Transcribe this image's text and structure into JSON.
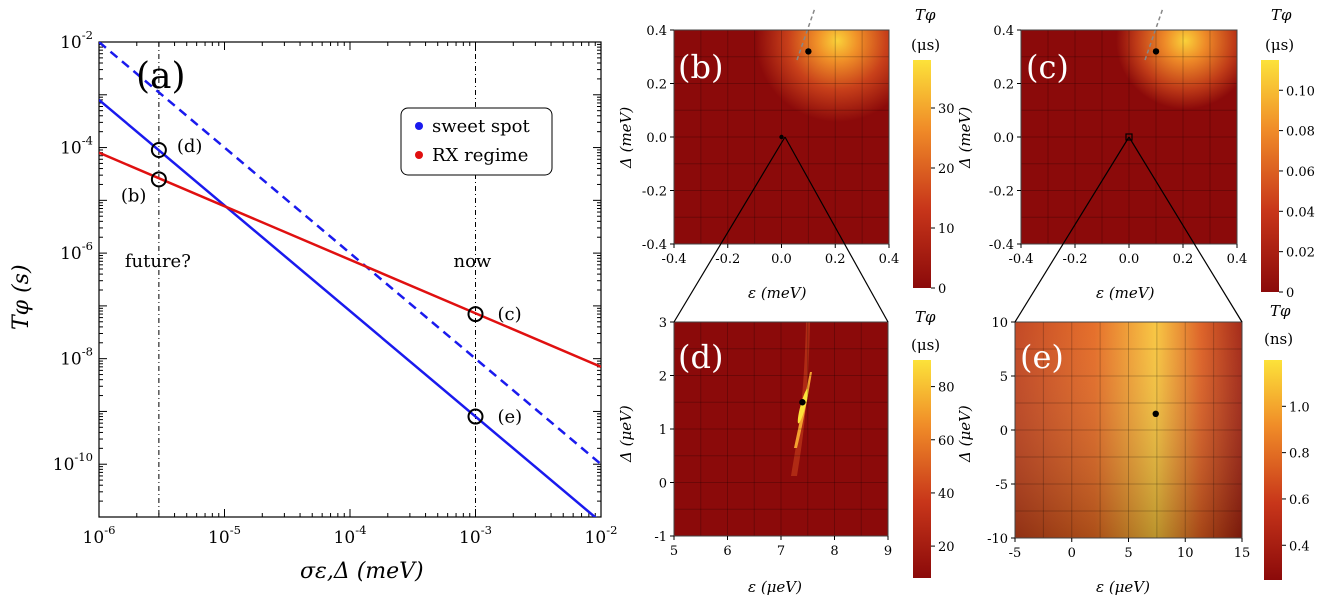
{
  "colors": {
    "blue": "#1a1aee",
    "red": "#e01010",
    "black": "#000000",
    "heat_low": "#8b0a0a",
    "heat_mid": "#d84a10",
    "heat_high": "#fce23a"
  },
  "chart_data": [
    {
      "id": "a",
      "type": "line",
      "panel_label": "(a)",
      "xlabel": "σε,Δ (meV)",
      "ylabel": "Tφ (s)",
      "xscale": "log",
      "yscale": "log",
      "xlim": [
        1e-06,
        0.01
      ],
      "ylim": [
        1e-11,
        0.01
      ],
      "x_tick_labels": [
        "10-6",
        "10-5",
        "10-4",
        "10-3",
        "10-2"
      ],
      "y_tick_labels": [
        "10-10",
        "10-8",
        "10-6",
        "10-4",
        "10-2"
      ],
      "legend_position": "top-right",
      "series": [
        {
          "name": "sweet spot",
          "color": "blue",
          "style": "solid",
          "x": [
            1e-06,
            0.01
          ],
          "y": [
            0.0008,
            8e-12
          ]
        },
        {
          "name": "",
          "color": "blue",
          "style": "dashed",
          "x": [
            1e-06,
            0.01
          ],
          "y": [
            0.01,
            1e-10
          ]
        },
        {
          "name": "RX regime",
          "color": "red",
          "style": "solid",
          "x": [
            1e-06,
            0.01
          ],
          "y": [
            8e-05,
            7e-09
          ]
        }
      ],
      "vlines": [
        {
          "x": 3e-06,
          "label": "future?"
        },
        {
          "x": 0.001,
          "label": "now"
        }
      ],
      "markers": [
        {
          "label": "(d)",
          "x": 3e-06,
          "y": 9e-05
        },
        {
          "label": "(b)",
          "x": 3e-06,
          "y": 2.5e-05
        },
        {
          "label": "(c)",
          "x": 0.001,
          "y": 7e-08
        },
        {
          "label": "(e)",
          "x": 0.001,
          "y": 8e-10
        }
      ]
    },
    {
      "id": "b",
      "type": "heatmap",
      "panel_label": "(b)",
      "xlabel": "ε (meV)",
      "ylabel": "Δ (meV)",
      "xlim": [
        -0.4,
        0.4
      ],
      "ylim": [
        -0.4,
        0.4
      ],
      "x_ticks": [
        "-0.4",
        "-0.2",
        "0.0",
        "0.2",
        "0.4"
      ],
      "y_ticks": [
        "-0.4",
        "-0.2",
        "0.0",
        "0.2",
        "0.4"
      ],
      "colorbar_title": [
        "Tφ",
        "(μs)"
      ],
      "colorbar_range": [
        0,
        38
      ],
      "colorbar_ticks": [
        "0",
        "10",
        "20",
        "30"
      ],
      "point": {
        "x": 0.1,
        "y": 0.32
      }
    },
    {
      "id": "c",
      "type": "heatmap",
      "panel_label": "(c)",
      "xlabel": "ε (meV)",
      "ylabel": "Δ (meV)",
      "xlim": [
        -0.4,
        0.4
      ],
      "ylim": [
        -0.4,
        0.4
      ],
      "x_ticks": [
        "-0.4",
        "-0.2",
        "0.0",
        "0.2",
        "0.4"
      ],
      "y_ticks": [
        "-0.4",
        "-0.2",
        "0.0",
        "0.2",
        "0.4"
      ],
      "colorbar_title": [
        "Tφ",
        "(μs)"
      ],
      "colorbar_range": [
        0,
        0.115
      ],
      "colorbar_ticks": [
        "0",
        "0.02",
        "0.04",
        "0.06",
        "0.08",
        "0.10"
      ],
      "point": {
        "x": 0.1,
        "y": 0.32
      }
    },
    {
      "id": "d",
      "type": "heatmap",
      "panel_label": "(d)",
      "xlabel": "ε (μeV)",
      "ylabel": "Δ (μeV)",
      "xlim": [
        5,
        9
      ],
      "ylim": [
        -1,
        3
      ],
      "x_ticks": [
        "5",
        "6",
        "7",
        "8",
        "9"
      ],
      "y_ticks": [
        "-1",
        "0",
        "1",
        "2",
        "3"
      ],
      "colorbar_title": [
        "Tφ",
        "(μs)"
      ],
      "colorbar_range": [
        8,
        90
      ],
      "colorbar_ticks": [
        "20",
        "40",
        "60",
        "80"
      ],
      "point": {
        "x": 7.4,
        "y": 1.5
      }
    },
    {
      "id": "e",
      "type": "heatmap",
      "panel_label": "(e)",
      "xlabel": "ε (μeV)",
      "ylabel": "Δ (μeV)",
      "xlim": [
        -5,
        15
      ],
      "ylim": [
        -10,
        10
      ],
      "x_ticks": [
        "-5",
        "0",
        "5",
        "10",
        "15"
      ],
      "y_ticks": [
        "-10",
        "-5",
        "0",
        "5",
        "10"
      ],
      "colorbar_title": [
        "Tφ",
        "(ns)"
      ],
      "colorbar_range": [
        0.25,
        1.2
      ],
      "colorbar_ticks": [
        "0.4",
        "0.6",
        "0.8",
        "1.0"
      ],
      "point": {
        "x": 7.4,
        "y": 1.5
      }
    }
  ]
}
